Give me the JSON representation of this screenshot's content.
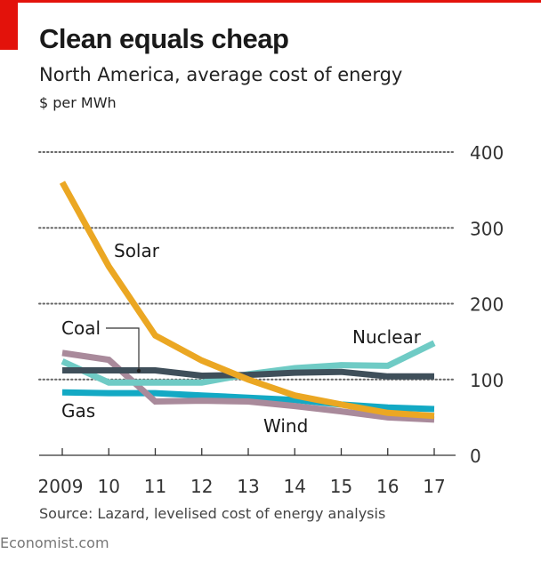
{
  "header": {
    "title": "Clean equals cheap",
    "subtitle": "North America, average cost of energy",
    "unit": "$ per MWh"
  },
  "footer": {
    "source": "Source: Lazard, levelised cost of energy analysis",
    "brand": "Economist.com"
  },
  "colors": {
    "accent": "#e3120b",
    "solar": "#eba723",
    "coal": "#3f4f5a",
    "nuclear": "#6fcbc5",
    "gas": "#13a9c4",
    "wind": "#a98a9b",
    "grid": "#666666"
  },
  "chart_data": {
    "type": "line",
    "title": "Clean equals cheap",
    "subtitle": "North America, average cost of energy",
    "xlabel": "",
    "ylabel": "$ per MWh",
    "x": [
      2009,
      2010,
      2011,
      2012,
      2013,
      2014,
      2015,
      2016,
      2017
    ],
    "x_tick_labels": [
      "2009",
      "10",
      "11",
      "12",
      "13",
      "14",
      "15",
      "16",
      "17"
    ],
    "y_ticks": [
      0,
      100,
      200,
      300,
      400
    ],
    "y_tick_labels": [
      "0",
      "100",
      "200",
      "300",
      "400"
    ],
    "ylim": [
      0,
      400
    ],
    "grid": true,
    "y_axis_side": "right",
    "series": [
      {
        "name": "Gas",
        "key": "gas",
        "values": [
          83,
          82,
          82,
          79,
          76,
          73,
          67,
          63,
          61
        ]
      },
      {
        "name": "Wind",
        "key": "wind",
        "values": [
          135,
          126,
          71,
          72,
          71,
          65,
          58,
          50,
          47
        ]
      },
      {
        "name": "Nuclear",
        "key": "nuclear",
        "values": [
          124,
          96,
          96,
          96,
          107,
          115,
          119,
          118,
          148
        ]
      },
      {
        "name": "Coal",
        "key": "coal",
        "values": [
          112,
          112,
          112,
          105,
          106,
          109,
          110,
          104,
          104
        ]
      },
      {
        "name": "Solar",
        "key": "solar",
        "values": [
          360,
          249,
          158,
          125,
          100,
          79,
          67,
          56,
          52
        ]
      }
    ],
    "labels": {
      "solar": "Solar",
      "coal": "Coal",
      "nuclear": "Nuclear",
      "gas": "Gas",
      "wind": "Wind"
    }
  }
}
